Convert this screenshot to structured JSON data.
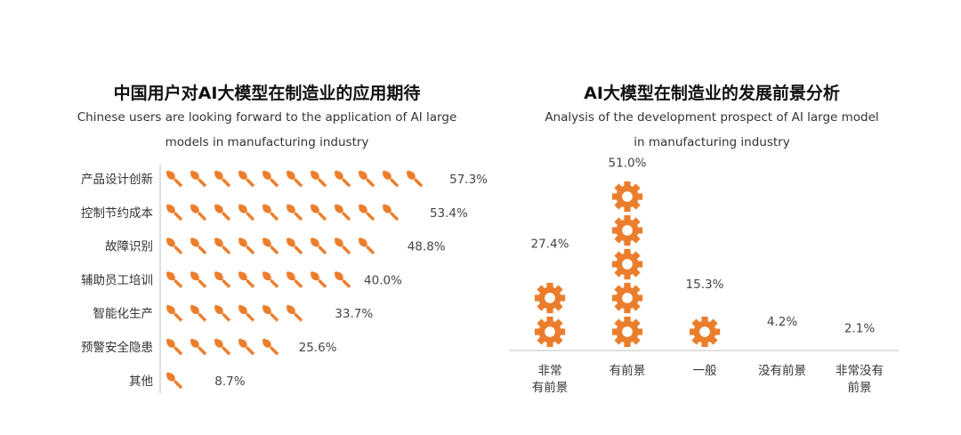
{
  "colors": {
    "accent": "#EB7E2C",
    "axis": "#bfbfbf",
    "text": "#333333"
  },
  "icons": {
    "left": "wrench-icon",
    "right": "gear-icon"
  },
  "chart_data": [
    {
      "type": "bar",
      "orientation": "horizontal",
      "title": "中国用户对AI大模型在制造业的应用期待",
      "subtitle_line1": "Chinese users are looking forward to the application of AI large",
      "subtitle_line2": "models in manufacturing industry",
      "categories": [
        "产品设计创新",
        "控制节约成本",
        "故障识别",
        "辅助员工培训",
        "智能化生产",
        "预警安全隐患",
        "其他"
      ],
      "values": [
        57.3,
        53.4,
        48.8,
        40.0,
        33.7,
        25.6,
        8.7
      ],
      "labels": [
        "57.3%",
        "53.4%",
        "48.8%",
        "40.0%",
        "33.7%",
        "25.6%",
        "8.7%"
      ],
      "unit": "%",
      "icon_unit_value": 5
    },
    {
      "type": "bar",
      "orientation": "vertical",
      "title": "AI大模型在制造业的发展前景分析",
      "subtitle_line1": "Analysis of the development prospect of AI large model",
      "subtitle_line2": "in  manufacturing industry",
      "categories": [
        [
          "非常",
          "有前景"
        ],
        [
          "有前景"
        ],
        [
          "一般"
        ],
        [
          "没有前景"
        ],
        [
          "非常没有",
          "前景"
        ]
      ],
      "values": [
        27.4,
        51.0,
        15.3,
        4.2,
        2.1
      ],
      "labels": [
        "27.4%",
        "51.0%",
        "15.3%",
        "4.2%",
        "2.1%"
      ],
      "unit": "%",
      "icon_unit_value": 10
    }
  ]
}
